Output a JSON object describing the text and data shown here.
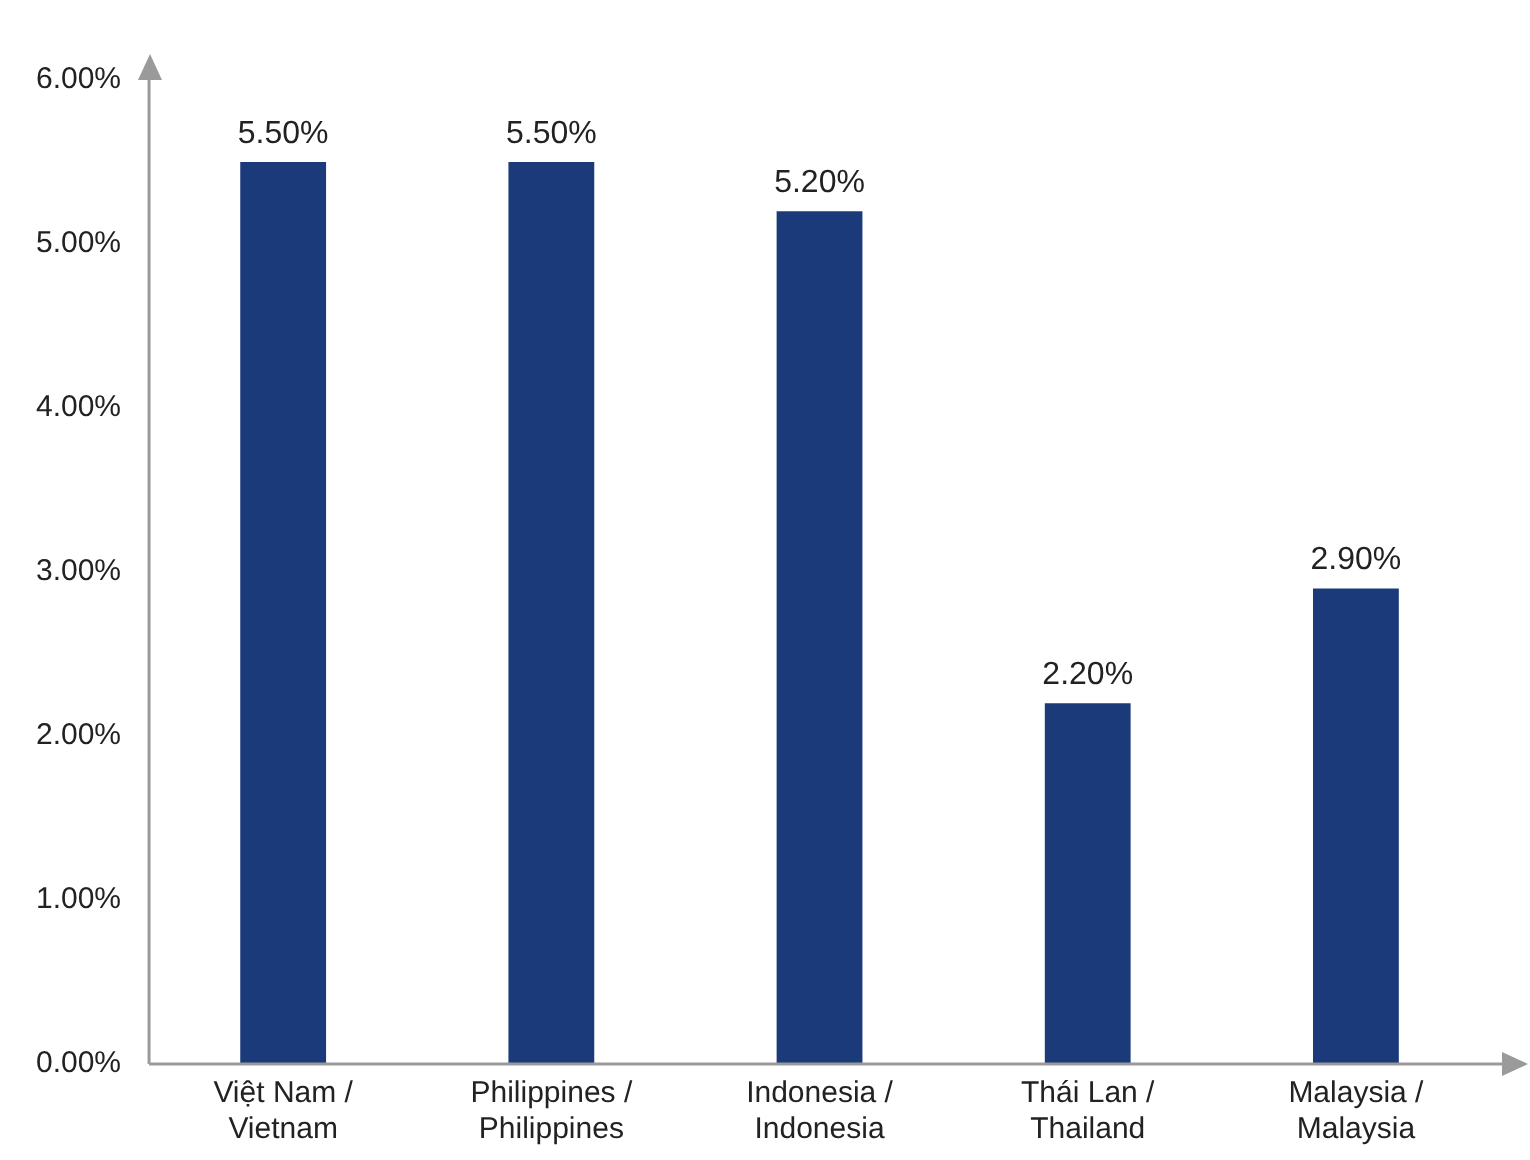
{
  "chart_data": {
    "type": "bar",
    "categories": [
      "Việt Nam / Vietnam",
      "Philippines / Philippines",
      "Indonesia / Indonesia",
      "Thái Lan / Thailand",
      "Malaysia / Malaysia"
    ],
    "values": [
      5.5,
      5.5,
      5.2,
      2.2,
      2.9
    ],
    "value_labels": [
      "5.50%",
      "5.50%",
      "5.20%",
      "2.20%",
      "2.90%"
    ],
    "color": "#1b3a7a",
    "ylim": [
      0,
      6
    ],
    "yticks": [
      {
        "value": 0,
        "label": "0.00%"
      },
      {
        "value": 1,
        "label": "1.00%"
      },
      {
        "value": 2,
        "label": "2.00%"
      },
      {
        "value": 3,
        "label": "3.00%"
      },
      {
        "value": 4,
        "label": "4.00%"
      },
      {
        "value": 5,
        "label": "5.00%"
      },
      {
        "value": 6,
        "label": "6.00%"
      }
    ],
    "grid": false,
    "legend": false
  }
}
